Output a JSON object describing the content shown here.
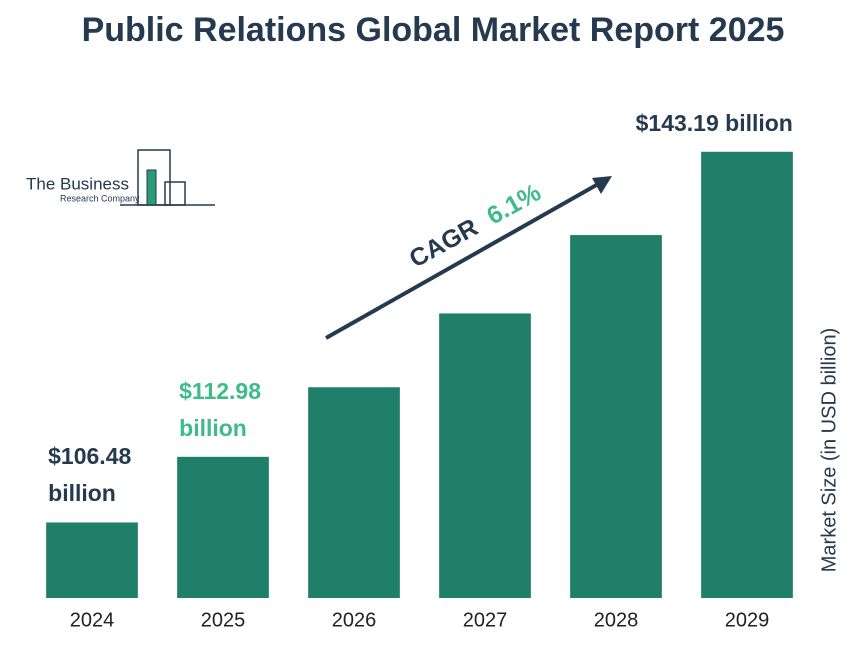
{
  "chart_data": {
    "type": "bar",
    "title": "Public Relations Global Market Report 2025",
    "categories": [
      "2024",
      "2025",
      "2026",
      "2027",
      "2028",
      "2029"
    ],
    "values": [
      106.48,
      112.98,
      119.87,
      127.18,
      134.94,
      143.19
    ],
    "value_labels": [
      "$106.48 billion",
      "$112.98 billion",
      null,
      null,
      null,
      "$143.19 billion"
    ],
    "value_label_colors": [
      "#253a4f",
      "#3dbb8a",
      null,
      null,
      null,
      "#253a4f"
    ],
    "color": "#1f7f68",
    "ylim": [
      99,
      150
    ],
    "y_label": "Market Size (in USD billion)",
    "annotation": {
      "text": "CAGR",
      "rate": "6.1%",
      "rate_color": "#3dbb8a"
    },
    "logo": {
      "line1": "The Business",
      "line2": "Research Company"
    }
  }
}
